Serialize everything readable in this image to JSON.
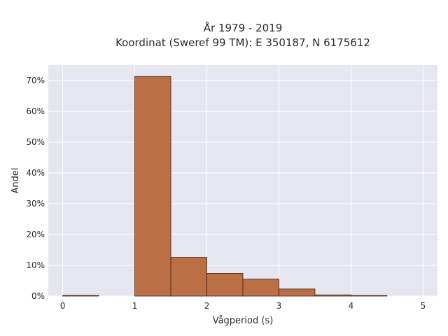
{
  "chart_data": {
    "type": "bar",
    "title_line1": "År 1979 - 2019",
    "title_line2": "Koordinat (Sweref 99 TM): E 350187, N 6175612",
    "xlabel": "Vågperiod (s)",
    "ylabel": "Andel",
    "bin_edges": [
      0,
      0.5,
      1.0,
      1.5,
      2.0,
      2.5,
      3.0,
      3.5,
      4.0,
      4.5
    ],
    "values": [
      0.2,
      0,
      71.3,
      12.6,
      7.4,
      5.5,
      2.3,
      0.4,
      0.1
    ],
    "xlim": [
      -0.2,
      5.2
    ],
    "ylim": [
      0,
      75
    ],
    "xticks": [
      0,
      1,
      2,
      3,
      4,
      5
    ],
    "xtick_labels": [
      "0",
      "1",
      "2",
      "3",
      "4",
      "5"
    ],
    "yticks": [
      0,
      10,
      20,
      30,
      40,
      50,
      60,
      70
    ],
    "ytick_labels": [
      "0%",
      "10%",
      "20%",
      "30%",
      "40%",
      "50%",
      "60%",
      "70%"
    ],
    "grid": true,
    "colors": {
      "bar_fill": "#b7683a",
      "bar_edge": "#3a2418",
      "plot_bg": "#e5e6f0",
      "grid": "#ffffff"
    }
  }
}
